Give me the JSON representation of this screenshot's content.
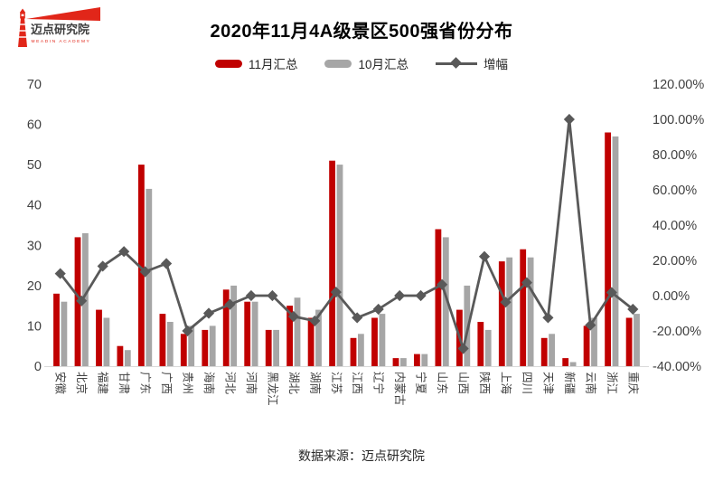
{
  "logo": {
    "name": "迈点研究院",
    "subtitle": "MEADIN ACADEMY",
    "color": "#e12619"
  },
  "title": "2020年11月4A级景区500强省份分布",
  "legend": [
    {
      "label": "11月汇总",
      "type": "bar",
      "color": "#c00000"
    },
    {
      "label": "10月汇总",
      "type": "bar",
      "color": "#a6a6a6"
    },
    {
      "label": "增幅",
      "type": "line",
      "color": "#595959"
    }
  ],
  "footer": "数据来源：迈点研究院",
  "chart_data": {
    "type": "bar+line combo",
    "title": "2020年11月4A级景区500强省份分布",
    "grid": false,
    "legend_position": "top",
    "categories": [
      "安徽",
      "北京",
      "福建",
      "甘肃",
      "广东",
      "广西",
      "贵州",
      "海南",
      "河北",
      "河南",
      "黑龙江",
      "湖北",
      "湖南",
      "江苏",
      "江西",
      "辽宁",
      "内蒙古",
      "宁夏",
      "山东",
      "山西",
      "陕西",
      "上海",
      "四川",
      "天津",
      "新疆",
      "云南",
      "浙江",
      "重庆"
    ],
    "series": [
      {
        "name": "11月汇总",
        "type": "bar",
        "axis": "left",
        "color": "#c00000",
        "values": [
          18,
          32,
          14,
          5,
          50,
          13,
          8,
          9,
          19,
          16,
          9,
          15,
          12,
          51,
          7,
          12,
          2,
          3,
          34,
          14,
          11,
          26,
          29,
          7,
          2,
          10,
          58,
          12
        ]
      },
      {
        "name": "10月汇总",
        "type": "bar",
        "axis": "left",
        "color": "#a6a6a6",
        "values": [
          16,
          33,
          12,
          4,
          44,
          11,
          10,
          10,
          20,
          16,
          9,
          17,
          14,
          50,
          8,
          13,
          2,
          3,
          32,
          20,
          9,
          27,
          27,
          8,
          1,
          12,
          57,
          13
        ]
      },
      {
        "name": "增幅",
        "type": "line",
        "axis": "right",
        "color": "#595959",
        "marker": "diamond",
        "values_pct": [
          12.5,
          -3.0,
          16.7,
          25.0,
          13.6,
          18.2,
          -20.0,
          -10.0,
          -5.0,
          0.0,
          0.0,
          -11.8,
          -14.3,
          2.0,
          -12.5,
          -7.7,
          0.0,
          0.0,
          6.3,
          -30.0,
          22.2,
          -3.7,
          7.4,
          -12.5,
          100.0,
          -16.7,
          1.8,
          -7.7
        ]
      }
    ],
    "left_axis": {
      "min": 0,
      "max": 70,
      "step": 10,
      "ticks": [
        "0",
        "10",
        "20",
        "30",
        "40",
        "50",
        "60",
        "70"
      ]
    },
    "right_axis": {
      "min": -40,
      "max": 120,
      "step": 20,
      "suffix": "%",
      "ticks": [
        "-40.00%",
        "-20.00%",
        "0.00%",
        "20.00%",
        "40.00%",
        "60.00%",
        "80.00%",
        "100.00%",
        "120.00%"
      ]
    }
  }
}
